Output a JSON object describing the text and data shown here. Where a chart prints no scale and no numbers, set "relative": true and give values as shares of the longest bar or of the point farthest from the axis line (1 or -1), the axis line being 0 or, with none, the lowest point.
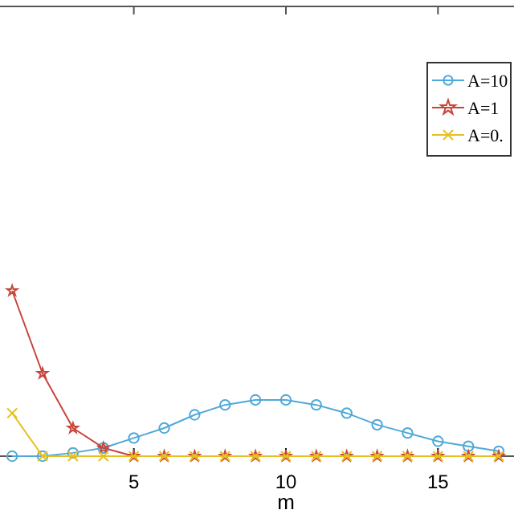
{
  "chart_data": {
    "type": "line",
    "xlabel": "m",
    "relative": true,
    "x": [
      1,
      2,
      3,
      4,
      5,
      6,
      7,
      8,
      9,
      10,
      11,
      12,
      13,
      14,
      15,
      16,
      17
    ],
    "xlim": [
      0.6,
      17.5
    ],
    "xticks": [
      5,
      10,
      15
    ],
    "legend": "top right",
    "series": [
      {
        "name": "A=10",
        "color": "#4fa9d8",
        "marker": "circle",
        "values": [
          0,
          0,
          0.02,
          0.05,
          0.11,
          0.17,
          0.25,
          0.31,
          0.34,
          0.34,
          0.31,
          0.26,
          0.19,
          0.14,
          0.09,
          0.06,
          0.03
        ]
      },
      {
        "name": "A=1",
        "color": "#c8453a",
        "marker": "star",
        "values": [
          1,
          0.5,
          0.17,
          0.05,
          0,
          0,
          0,
          0,
          0,
          0,
          0,
          0,
          0,
          0,
          0,
          0,
          0
        ]
      },
      {
        "name": "A=0.",
        "color": "#e6c020",
        "marker": "cross",
        "values": [
          0.26,
          0,
          0,
          0,
          0,
          0,
          0,
          0,
          0,
          0,
          0,
          0,
          0,
          0,
          0,
          0,
          0
        ]
      }
    ]
  }
}
